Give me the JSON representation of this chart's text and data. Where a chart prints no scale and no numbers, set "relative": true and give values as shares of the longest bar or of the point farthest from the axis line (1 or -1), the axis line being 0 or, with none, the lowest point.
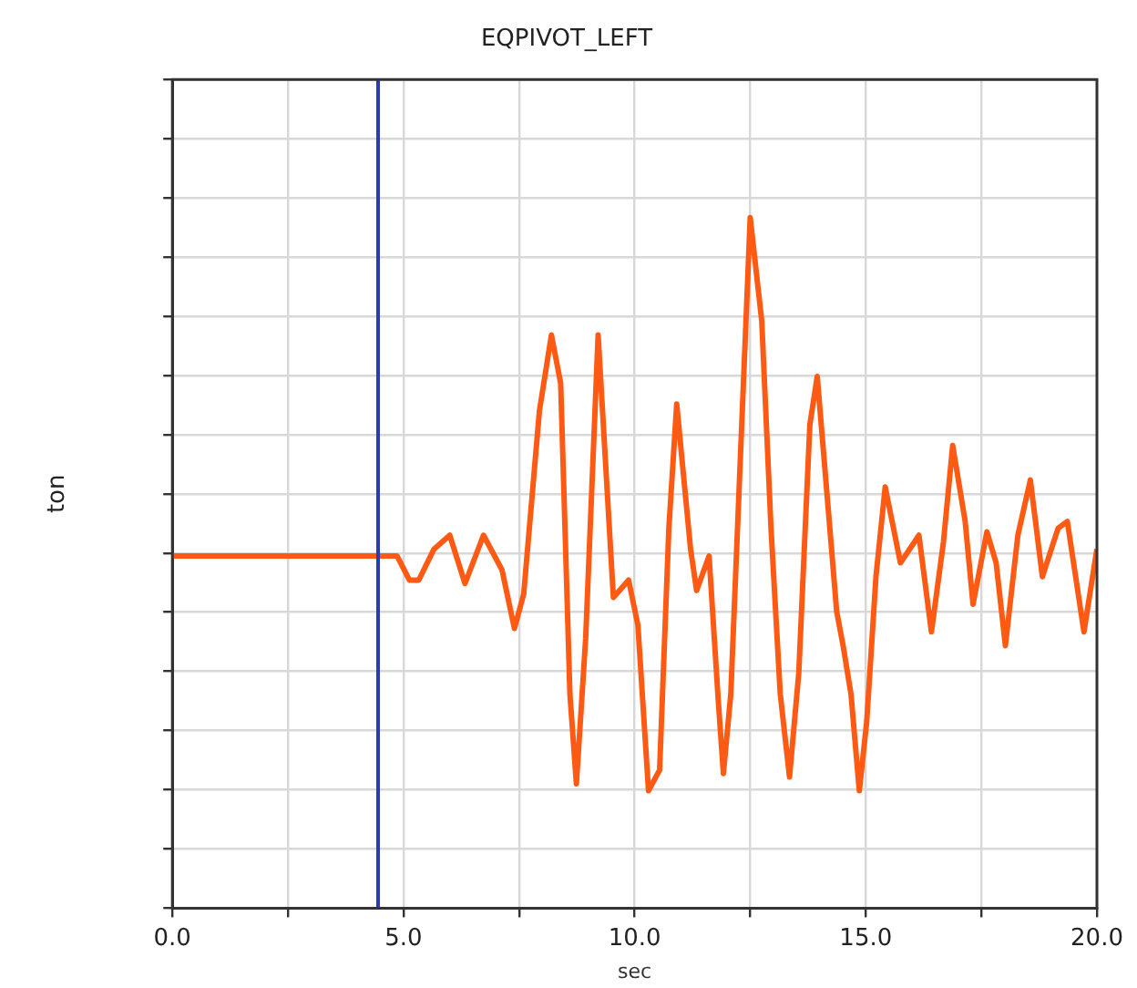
{
  "chart_data": {
    "type": "line",
    "title": "EQPIVOT_LEFT",
    "xlabel": "sec",
    "ylabel": "ton",
    "relative": true,
    "grid": true,
    "marker": "none",
    "line_style": "solid",
    "xlim": [
      0,
      20
    ],
    "xticks": [
      {
        "value": 0,
        "label": "0.0"
      },
      {
        "value": 2.5,
        "label": null
      },
      {
        "value": 5,
        "label": "5.0"
      },
      {
        "value": 7.5,
        "label": null
      },
      {
        "value": 10,
        "label": "10.0"
      },
      {
        "value": 12.5,
        "label": null
      },
      {
        "value": 15,
        "label": "15.0"
      },
      {
        "value": 17.5,
        "label": null
      },
      {
        "value": 20,
        "label": "20.0"
      }
    ],
    "ref_lines": [
      {
        "axis": "x",
        "value": 4.45,
        "color": "#2b3bb0"
      }
    ],
    "series": [
      {
        "color": "#ff5a14",
        "x": [
          0,
          2,
          4.4,
          4.86,
          5.13,
          5.33,
          5.66,
          6.0,
          6.33,
          6.73,
          7.13,
          7.4,
          7.6,
          7.94,
          8.2,
          8.4,
          8.6,
          8.74,
          8.94,
          9.21,
          9.54,
          9.87,
          10.07,
          10.3,
          10.54,
          10.74,
          10.91,
          11.21,
          11.34,
          11.61,
          11.81,
          11.92,
          12.08,
          12.28,
          12.5,
          12.75,
          12.95,
          13.15,
          13.35,
          13.55,
          13.79,
          13.95,
          14.21,
          14.37,
          14.51,
          14.68,
          14.86,
          15.02,
          15.22,
          15.42,
          15.75,
          16.15,
          16.42,
          16.68,
          16.88,
          17.15,
          17.32,
          17.62,
          17.82,
          18.02,
          18.29,
          18.56,
          18.82,
          19.16,
          19.36,
          19.72,
          20.0
        ],
        "values": [
          0.51,
          0.51,
          0.51,
          0.51,
          0.475,
          0.475,
          0.52,
          0.54,
          0.47,
          0.54,
          0.49,
          0.405,
          0.455,
          0.72,
          0.83,
          0.76,
          0.31,
          0.18,
          0.39,
          0.83,
          0.45,
          0.475,
          0.41,
          0.17,
          0.2,
          0.55,
          0.73,
          0.52,
          0.46,
          0.51,
          0.3,
          0.195,
          0.31,
          0.64,
          1,
          0.85,
          0.55,
          0.31,
          0.19,
          0.34,
          0.7,
          0.77,
          0.56,
          0.43,
          0.38,
          0.31,
          0.17,
          0.27,
          0.48,
          0.61,
          0.5,
          0.54,
          0.4,
          0.53,
          0.67,
          0.56,
          0.44,
          0.545,
          0.5,
          0.38,
          0.54,
          0.62,
          0.48,
          0.55,
          0.56,
          0.4,
          0.52
        ]
      }
    ]
  }
}
